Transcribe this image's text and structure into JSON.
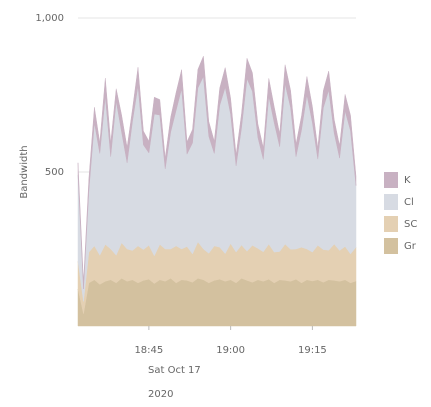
{
  "chart_data": {
    "type": "stacked-area",
    "y_label": "Bandwidth",
    "x": [
      "18:32",
      "18:33",
      "18:34",
      "18:35",
      "18:36",
      "18:37",
      "18:38",
      "18:39",
      "18:40",
      "18:41",
      "18:42",
      "18:43",
      "18:44",
      "18:45",
      "18:46",
      "18:47",
      "18:48",
      "18:49",
      "18:50",
      "18:51",
      "18:52",
      "18:53",
      "18:54",
      "18:55",
      "18:56",
      "18:57",
      "18:58",
      "18:59",
      "19:00",
      "19:01",
      "19:02",
      "19:03",
      "19:04",
      "19:05",
      "19:06",
      "19:07",
      "19:08",
      "19:09",
      "19:10",
      "19:11",
      "19:12",
      "19:13",
      "19:14",
      "19:15",
      "19:16",
      "19:17",
      "19:18",
      "19:19",
      "19:20",
      "19:21",
      "19:22",
      "19:23"
    ],
    "xlim": [
      "18:32",
      "19:23"
    ],
    "xticks": [
      "18:45",
      "19:00",
      "19:15"
    ],
    "x_sublabels": [
      "Sat Oct 17",
      "2020"
    ],
    "ylim": [
      0,
      1000
    ],
    "yticks": [
      500,
      {
        "value": 1000,
        "label": "1,000"
      }
    ],
    "grid": true,
    "series": [
      {
        "name": "Gr",
        "color": "#d3c19f",
        "values": [
          120,
          40,
          140,
          150,
          135,
          145,
          150,
          140,
          155,
          145,
          150,
          140,
          148,
          152,
          138,
          150,
          145,
          155,
          140,
          150,
          148,
          142,
          155,
          150,
          140,
          148,
          152,
          145,
          150,
          140,
          155,
          148,
          142,
          150,
          145,
          152,
          140,
          150,
          148,
          145,
          152,
          140,
          150,
          146,
          150,
          142,
          150,
          148,
          145,
          150,
          140,
          146
        ]
      },
      {
        "name": "SC",
        "color": "#e4d0b3",
        "values": [
          90,
          40,
          100,
          110,
          95,
          120,
          100,
          90,
          115,
          105,
          95,
          120,
          100,
          110,
          90,
          115,
          105,
          95,
          120,
          100,
          110,
          92,
          118,
          100,
          96,
          112,
          104,
          90,
          118,
          100,
          108,
          95,
          120,
          102,
          96,
          114,
          100,
          92,
          118,
          104,
          98,
          116,
          100,
          94,
          112,
          106,
          96,
          118,
          100,
          108,
          94,
          110
        ]
      },
      {
        "name": "Cl",
        "color": "#d7dbe3",
        "values": [
          280,
          40,
          200,
          400,
          330,
          480,
          300,
          500,
          360,
          280,
          420,
          520,
          340,
          300,
          460,
          420,
          260,
          380,
          440,
          520,
          300,
          360,
          500,
          560,
          380,
          300,
          460,
          540,
          420,
          280,
          380,
          560,
          500,
          360,
          300,
          480,
          420,
          340,
          520,
          460,
          300,
          380,
          500,
          420,
          280,
          460,
          520,
          360,
          300,
          440,
          400,
          200
        ]
      },
      {
        "name": "K",
        "color": "#c8b1c2",
        "values": [
          40,
          20,
          40,
          50,
          35,
          60,
          45,
          40,
          55,
          50,
          40,
          60,
          45,
          38,
          55,
          50,
          35,
          48,
          58,
          62,
          40,
          44,
          60,
          66,
          48,
          40,
          56,
          64,
          52,
          36,
          46,
          66,
          60,
          44,
          38,
          58,
          52,
          42,
          62,
          56,
          40,
          46,
          60,
          52,
          36,
          56,
          62,
          44,
          40,
          54,
          50,
          30
        ]
      }
    ]
  }
}
